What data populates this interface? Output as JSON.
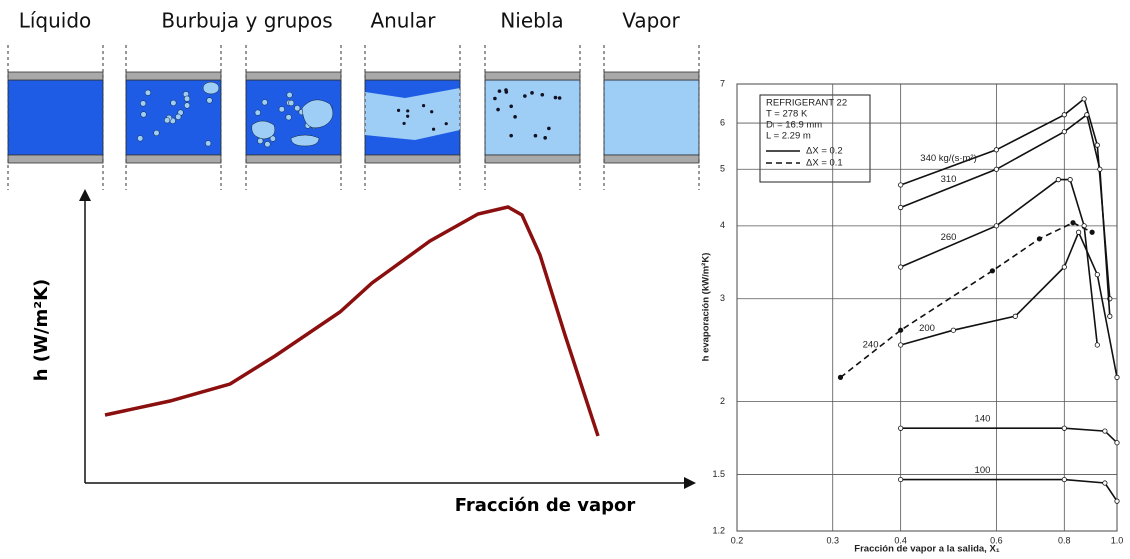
{
  "regimes": {
    "labels": [
      "Líquido",
      "Burbuja y grupos",
      "Anular",
      "Niebla",
      "Vapor"
    ]
  },
  "schematic": {
    "y_label": "h (W/m²K)",
    "x_label": "Fracción de vapor"
  },
  "chart_data": {
    "type": "line",
    "x_label": "Fracción de vapor a la salida, X₁",
    "y_label": "h evaporación (kW/m²K)",
    "annotations": [
      "REFRIGERANT 22",
      "T = 278 K",
      "Dₗ = 16.9 mm",
      "L = 2.29 m"
    ],
    "line_styles": [
      {
        "label": "ΔX = 0.2",
        "dashed": false
      },
      {
        "label": "ΔX = 0.1",
        "dashed": true
      }
    ],
    "xlim": [
      0.2,
      1.0
    ],
    "ylim": [
      1.2,
      7
    ],
    "x_log": true,
    "y_log": true,
    "grid": true,
    "xticks": [
      0.2,
      0.3,
      0.4,
      0.6,
      0.8,
      {
        "value": 1.0,
        "label": "1.0"
      }
    ],
    "yticks": [
      1.2,
      1.5,
      2,
      3,
      4,
      5,
      6,
      7
    ],
    "series": [
      {
        "name": "340 kg/(s·m²)",
        "color": "#111111",
        "dashed": false,
        "x": [
          0.4,
          0.6,
          0.8,
          0.87,
          0.92,
          0.97
        ],
        "values": [
          4.7,
          5.4,
          6.2,
          6.6,
          5.5,
          3.0
        ]
      },
      {
        "name": "310",
        "color": "#111111",
        "dashed": false,
        "x": [
          0.4,
          0.6,
          0.8,
          0.88,
          0.93,
          0.97
        ],
        "values": [
          4.3,
          5.0,
          5.8,
          6.2,
          5.0,
          2.8
        ]
      },
      {
        "name": "260",
        "color": "#111111",
        "dashed": false,
        "x": [
          0.4,
          0.6,
          0.78,
          0.82,
          0.87,
          0.92
        ],
        "values": [
          3.4,
          4.0,
          4.8,
          4.8,
          4.0,
          2.5
        ]
      },
      {
        "name": "240",
        "color": "#111111",
        "dashed": true,
        "x": [
          0.31,
          0.4,
          0.59,
          0.72,
          0.83,
          0.9
        ],
        "values": [
          2.2,
          2.65,
          3.35,
          3.8,
          4.05,
          3.9
        ]
      },
      {
        "name": "200",
        "color": "#111111",
        "dashed": false,
        "x": [
          0.4,
          0.5,
          0.65,
          0.8,
          0.85,
          0.92,
          1.0
        ],
        "values": [
          2.5,
          2.65,
          2.8,
          3.4,
          3.9,
          3.3,
          2.2
        ]
      },
      {
        "name": "140",
        "color": "#111111",
        "dashed": false,
        "x": [
          0.4,
          0.8,
          0.95,
          1.0
        ],
        "values": [
          1.8,
          1.8,
          1.78,
          1.7
        ]
      },
      {
        "name": "100",
        "color": "#111111",
        "dashed": false,
        "x": [
          0.4,
          0.8,
          0.95,
          1.0
        ],
        "values": [
          1.47,
          1.47,
          1.45,
          1.35
        ]
      }
    ]
  }
}
